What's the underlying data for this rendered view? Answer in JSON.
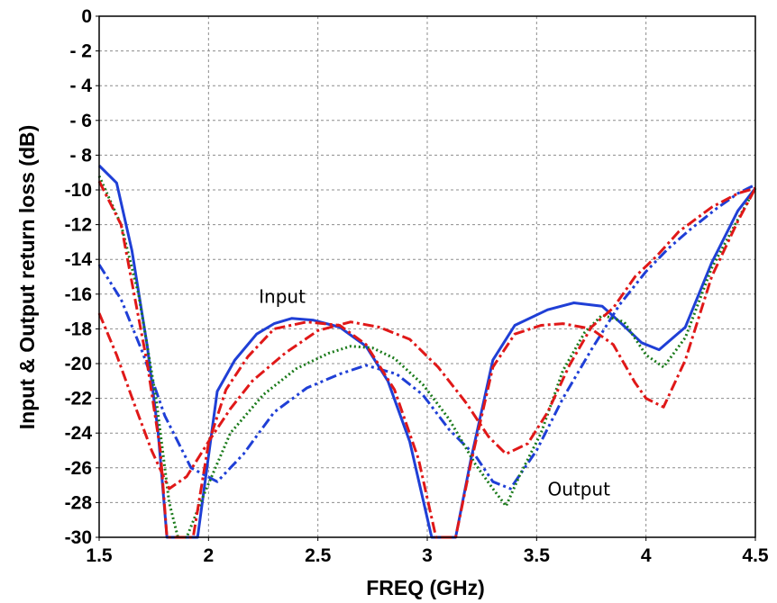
{
  "chart_data": {
    "type": "line",
    "title": "",
    "xlabel": "FREQ (GHz)",
    "ylabel": "Input & Output return loss (dB)",
    "xlim": [
      1.5,
      4.5
    ],
    "ylim": [
      -30,
      0
    ],
    "grid": true,
    "legend": "none",
    "x_ticks": [
      1.5,
      2,
      2.5,
      3,
      3.5,
      4,
      4.5
    ],
    "x_tick_labels": [
      "1.5",
      "2",
      "2.5",
      "3",
      "3.5",
      "4",
      "4.5"
    ],
    "y_ticks": [
      0,
      -2,
      -4,
      -6,
      -8,
      -10,
      -12,
      -14,
      -16,
      -18,
      -20,
      -22,
      -24,
      -26,
      -28,
      -30
    ],
    "y_tick_labels": [
      "0",
      "- 2",
      "- 4",
      "- 6",
      "- 8",
      "-10",
      "-12",
      "-14",
      "-16",
      "-18",
      "-20",
      "-22",
      "-24",
      "-26",
      "-28",
      "-30"
    ],
    "annotations": [
      {
        "text": "Input",
        "x": 2.23,
        "y": -16.5
      },
      {
        "text": "Output",
        "x": 3.55,
        "y": -27.6
      }
    ],
    "series": [
      {
        "color": "#1f3fd6",
        "style": "solid",
        "points": [
          [
            1.5,
            -8.6
          ],
          [
            1.58,
            -9.6
          ],
          [
            1.65,
            -13.5
          ],
          [
            1.72,
            -19
          ],
          [
            1.77,
            -24
          ],
          [
            1.81,
            -30
          ],
          [
            1.95,
            -30
          ],
          [
            2.04,
            -21.6
          ],
          [
            2.12,
            -19.8
          ],
          [
            2.22,
            -18.3
          ],
          [
            2.3,
            -17.7
          ],
          [
            2.38,
            -17.4
          ],
          [
            2.48,
            -17.5
          ],
          [
            2.6,
            -17.9
          ],
          [
            2.72,
            -19
          ],
          [
            2.82,
            -21
          ],
          [
            2.92,
            -24.5
          ],
          [
            3.02,
            -30
          ],
          [
            3.13,
            -30
          ],
          [
            3.2,
            -25.5
          ],
          [
            3.3,
            -19.8
          ],
          [
            3.4,
            -17.8
          ],
          [
            3.55,
            -16.9
          ],
          [
            3.67,
            -16.5
          ],
          [
            3.8,
            -16.7
          ],
          [
            3.88,
            -17.6
          ],
          [
            3.98,
            -18.8
          ],
          [
            4.06,
            -19.2
          ],
          [
            4.18,
            -17.9
          ],
          [
            4.3,
            -14.2
          ],
          [
            4.42,
            -11.2
          ],
          [
            4.5,
            -9.9
          ]
        ]
      },
      {
        "color": "#1f3fd6",
        "style": "dashdotdot",
        "points": [
          [
            1.5,
            -14.3
          ],
          [
            1.6,
            -16.3
          ],
          [
            1.7,
            -19.4
          ],
          [
            1.8,
            -23
          ],
          [
            1.92,
            -26
          ],
          [
            2.04,
            -26.8
          ],
          [
            2.16,
            -25.2
          ],
          [
            2.3,
            -22.8
          ],
          [
            2.45,
            -21.4
          ],
          [
            2.6,
            -20.6
          ],
          [
            2.72,
            -20.1
          ],
          [
            2.86,
            -20.6
          ],
          [
            2.98,
            -21.8
          ],
          [
            3.1,
            -23.8
          ],
          [
            3.22,
            -25.3
          ],
          [
            3.3,
            -26.8
          ],
          [
            3.38,
            -27.2
          ],
          [
            3.5,
            -25
          ],
          [
            3.62,
            -22
          ],
          [
            3.75,
            -19.2
          ],
          [
            3.88,
            -16.6
          ],
          [
            4.0,
            -14.7
          ],
          [
            4.1,
            -13.4
          ],
          [
            4.2,
            -12.3
          ],
          [
            4.32,
            -11.1
          ],
          [
            4.42,
            -10.2
          ],
          [
            4.5,
            -9.7
          ]
        ]
      },
      {
        "color": "#1a7a1a",
        "style": "dotted",
        "points": [
          [
            1.5,
            -9.2
          ],
          [
            1.6,
            -12
          ],
          [
            1.68,
            -16
          ],
          [
            1.76,
            -22
          ],
          [
            1.82,
            -28
          ],
          [
            1.86,
            -30
          ],
          [
            1.9,
            -30
          ],
          [
            1.98,
            -27.5
          ],
          [
            2.1,
            -24
          ],
          [
            2.25,
            -21.8
          ],
          [
            2.4,
            -20.3
          ],
          [
            2.55,
            -19.4
          ],
          [
            2.65,
            -19
          ],
          [
            2.75,
            -19.1
          ],
          [
            2.85,
            -19.7
          ],
          [
            2.98,
            -21.2
          ],
          [
            3.1,
            -23.2
          ],
          [
            3.22,
            -25.8
          ],
          [
            3.3,
            -27.2
          ],
          [
            3.36,
            -28.2
          ],
          [
            3.42,
            -26.5
          ],
          [
            3.52,
            -24
          ],
          [
            3.62,
            -20.4
          ],
          [
            3.72,
            -18.2
          ],
          [
            3.8,
            -17.2
          ],
          [
            3.9,
            -17.6
          ],
          [
            4.0,
            -19.5
          ],
          [
            4.08,
            -20.2
          ],
          [
            4.18,
            -18.5
          ],
          [
            4.3,
            -14.5
          ],
          [
            4.42,
            -11.7
          ],
          [
            4.5,
            -9.9
          ]
        ]
      },
      {
        "color": "#e01818",
        "style": "dashdot",
        "points": [
          [
            1.5,
            -17.1
          ],
          [
            1.58,
            -19.5
          ],
          [
            1.66,
            -22.3
          ],
          [
            1.74,
            -25
          ],
          [
            1.82,
            -27.2
          ],
          [
            1.9,
            -26.5
          ],
          [
            2.0,
            -24.5
          ],
          [
            2.1,
            -22.6
          ],
          [
            2.2,
            -21
          ],
          [
            2.35,
            -19.4
          ],
          [
            2.5,
            -18.1
          ],
          [
            2.65,
            -17.6
          ],
          [
            2.78,
            -17.9
          ],
          [
            2.92,
            -18.6
          ],
          [
            3.05,
            -20.2
          ],
          [
            3.18,
            -22.3
          ],
          [
            3.28,
            -24.2
          ],
          [
            3.36,
            -25.2
          ],
          [
            3.46,
            -24.6
          ],
          [
            3.55,
            -22.8
          ],
          [
            3.65,
            -20.1
          ],
          [
            3.75,
            -17.9
          ],
          [
            3.85,
            -16.8
          ],
          [
            3.95,
            -15
          ],
          [
            4.05,
            -13.8
          ],
          [
            4.15,
            -12.4
          ],
          [
            4.3,
            -11
          ],
          [
            4.42,
            -10.2
          ],
          [
            4.5,
            -9.9
          ]
        ]
      },
      {
        "color": "#e01818",
        "style": "dashdot",
        "points": [
          [
            1.5,
            -9.5
          ],
          [
            1.6,
            -12
          ],
          [
            1.66,
            -16
          ],
          [
            1.72,
            -20
          ],
          [
            1.78,
            -25
          ],
          [
            1.81,
            -30
          ],
          [
            1.93,
            -30
          ],
          [
            2.0,
            -24.6
          ],
          [
            2.08,
            -21.5
          ],
          [
            2.18,
            -19.6
          ],
          [
            2.3,
            -18
          ],
          [
            2.45,
            -17.6
          ],
          [
            2.6,
            -17.8
          ],
          [
            2.72,
            -18.9
          ],
          [
            2.85,
            -21.5
          ],
          [
            2.96,
            -25.5
          ],
          [
            3.04,
            -30
          ],
          [
            3.13,
            -30
          ],
          [
            3.2,
            -25.7
          ],
          [
            3.3,
            -20.2
          ],
          [
            3.4,
            -18.3
          ],
          [
            3.52,
            -17.8
          ],
          [
            3.62,
            -17.7
          ],
          [
            3.75,
            -18
          ],
          [
            3.85,
            -18.9
          ],
          [
            3.95,
            -21.1
          ],
          [
            4.0,
            -22
          ],
          [
            4.08,
            -22.5
          ],
          [
            4.18,
            -19.8
          ],
          [
            4.3,
            -15
          ],
          [
            4.42,
            -11.8
          ],
          [
            4.5,
            -9.9
          ]
        ]
      }
    ]
  }
}
